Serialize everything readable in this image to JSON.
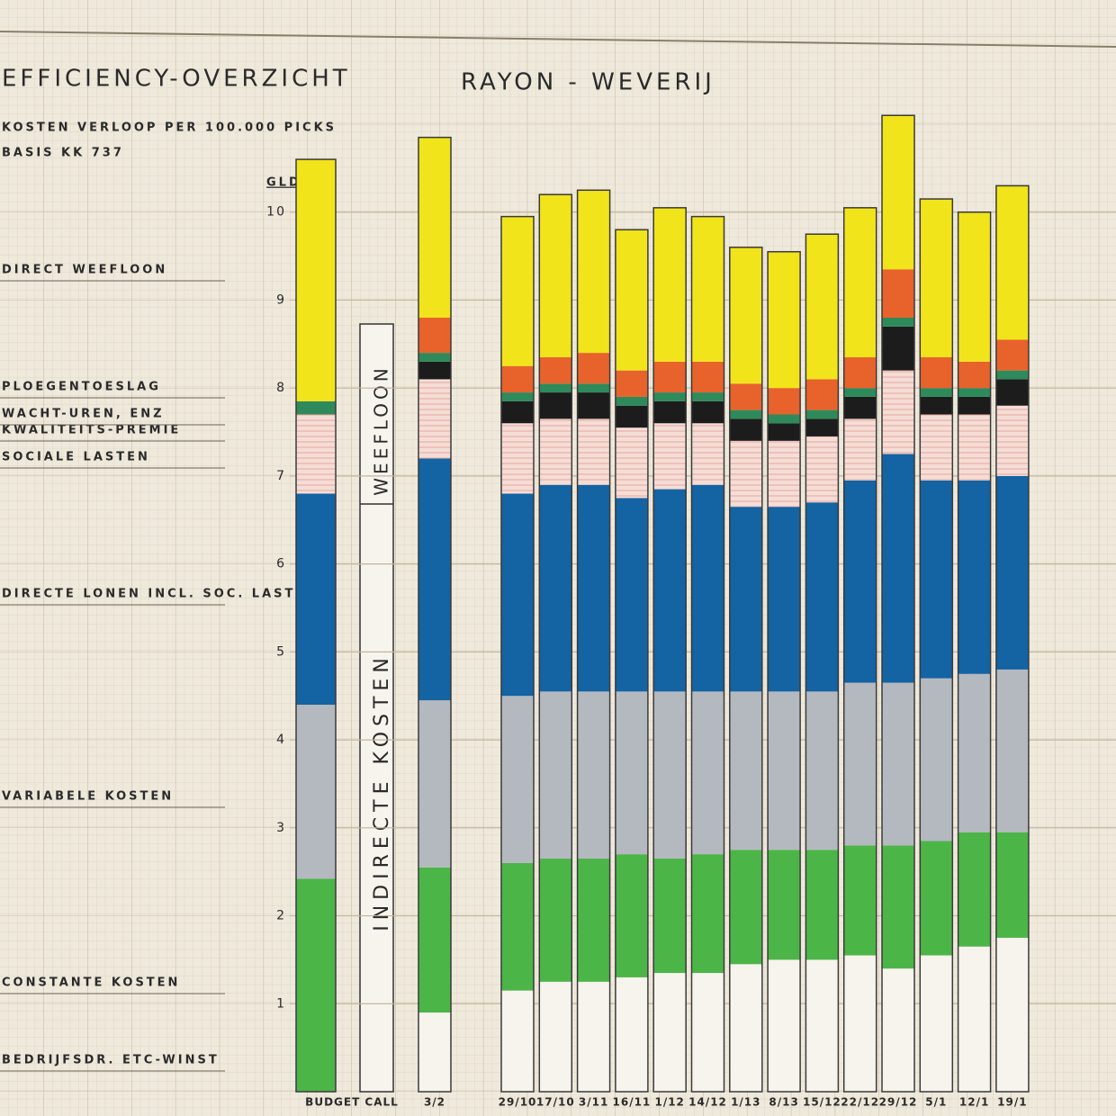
{
  "chart_data": {
    "type": "stacked-bar",
    "title": "EFFICIENCY-OVERZICHT",
    "subtitle": "RAYON - WEVERIJ",
    "notes": [
      "KOSTEN VERLOOP PER 100.000 PICKS",
      "BASIS KK 737"
    ],
    "y_unit": "GLDS",
    "annotations": [
      "INDIRECTE KOSTEN",
      "WEEFLOON"
    ],
    "categories": [
      "BUDGET CALL",
      "3/2",
      "29/10",
      "17/10",
      "3/11",
      "16/11",
      "1/12",
      "14/12",
      "1/13",
      "8/13",
      "15/12",
      "22/12",
      "29/12",
      "5/1",
      "12/1",
      "19/1"
    ],
    "ylim": [
      0,
      11
    ],
    "yticks": [
      1,
      2,
      3,
      4,
      5,
      6,
      7,
      8,
      9,
      10
    ],
    "grid": true,
    "series": [
      {
        "name": "BEDRIJFSDR. ETC-WINST",
        "color": "#f7f4ee",
        "values": [
          0,
          0.9,
          1.15,
          1.25,
          1.25,
          1.3,
          1.35,
          1.35,
          1.45,
          1.5,
          1.5,
          1.55,
          1.4,
          1.55,
          1.65,
          1.75
        ]
      },
      {
        "name": "CONSTANTE KOSTEN",
        "color": "#4cb548",
        "values": [
          2.42,
          1.65,
          1.45,
          1.4,
          1.4,
          1.4,
          1.3,
          1.35,
          1.3,
          1.25,
          1.25,
          1.25,
          1.4,
          1.3,
          1.3,
          1.2
        ]
      },
      {
        "name": "VARIABELE KOSTEN",
        "color": "#b4b9bf",
        "values": [
          1.98,
          1.9,
          1.9,
          1.9,
          1.9,
          1.85,
          1.9,
          1.85,
          1.8,
          1.8,
          1.8,
          1.85,
          1.85,
          1.85,
          1.8,
          1.85
        ]
      },
      {
        "name": "DIRECTE LONEN INCL. SOC. LASTEN",
        "color": "#1463a3",
        "values": [
          2.4,
          2.75,
          2.3,
          2.35,
          2.35,
          2.2,
          2.3,
          2.35,
          2.1,
          2.1,
          2.15,
          2.3,
          2.6,
          2.25,
          2.2,
          2.2
        ]
      },
      {
        "name": "SOCIALE LASTEN",
        "color": "#f4ddd6",
        "values": [
          0.9,
          0.9,
          0.8,
          0.75,
          0.75,
          0.8,
          0.75,
          0.7,
          0.75,
          0.75,
          0.75,
          0.7,
          0.95,
          0.75,
          0.75,
          0.8
        ]
      },
      {
        "name": "KWALITEITS-PREMIE",
        "color": "#1c1c1c",
        "values": [
          0,
          0.2,
          0.25,
          0.3,
          0.3,
          0.25,
          0.25,
          0.25,
          0.25,
          0.2,
          0.2,
          0.25,
          0.5,
          0.2,
          0.2,
          0.3
        ]
      },
      {
        "name": "WACHT-UREN, ENZ",
        "color": "#2e8a5a",
        "values": [
          0.15,
          0.1,
          0.1,
          0.1,
          0.1,
          0.1,
          0.1,
          0.1,
          0.1,
          0.1,
          0.1,
          0.1,
          0.1,
          0.1,
          0.1,
          0.1
        ]
      },
      {
        "name": "PLOEGENTOESLAG",
        "color": "#e8622c",
        "values": [
          0,
          0.4,
          0.3,
          0.3,
          0.35,
          0.3,
          0.35,
          0.35,
          0.3,
          0.3,
          0.35,
          0.35,
          0.55,
          0.35,
          0.3,
          0.35
        ]
      },
      {
        "name": "DIRECT WEEFLOON",
        "color": "#f2e41a",
        "values": [
          2.75,
          2.05,
          1.7,
          1.85,
          1.85,
          1.6,
          1.75,
          1.65,
          1.55,
          1.55,
          1.65,
          1.7,
          1.75,
          1.8,
          1.7,
          1.75
        ]
      }
    ]
  }
}
